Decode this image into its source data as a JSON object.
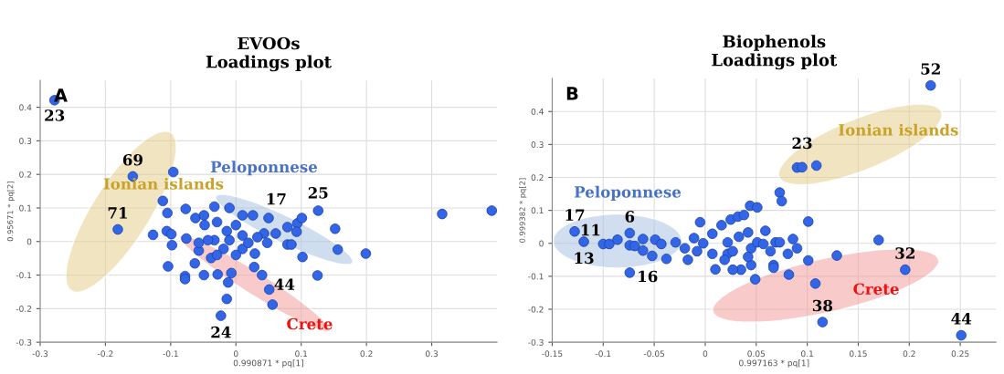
{
  "chart_data": [
    {
      "type": "scatter",
      "title": "EVOOs\nLoadings plot",
      "xlabel": "0.990871 * pq[1]",
      "ylabel": "0.95671 * pq[2]",
      "xlim": [
        -0.3,
        0.4
      ],
      "ylim": [
        -0.3,
        0.48
      ],
      "xticks": [
        -0.3,
        -0.2,
        -0.1,
        0,
        0.1,
        0.2,
        0.3
      ],
      "yticks": [
        -0.3,
        -0.2,
        -0.1,
        0,
        0.1,
        0.2,
        0.3,
        0.4
      ],
      "grid": true,
      "marker": "circle",
      "series": [
        {
          "color": "#3366e6",
          "x": [
            -0.278,
            -0.158,
            -0.181,
            -0.096,
            -0.112,
            -0.105,
            -0.127,
            -0.106,
            -0.099,
            -0.098,
            -0.104,
            -0.078,
            -0.078,
            -0.077,
            -0.062,
            -0.049,
            -0.033,
            -0.01,
            0.01,
            0.026,
            0.05,
            0.079,
            0.094,
            0.101,
            0.126,
            0.152,
            0.156,
            0.199,
            0.102,
            0.125,
            0.079,
            0.085,
            0.061,
            0.043,
            0.093,
            0.028,
            0.04,
            0.051,
            0.056,
            -0.014,
            -0.012,
            -0.023,
            -0.049,
            -0.063,
            -0.028,
            -0.007,
            -0.038,
            -0.057,
            -0.076,
            0.01,
            0.019,
            -0.019,
            -0.033,
            -0.014,
            0.0,
            0.01,
            0.033,
            0.048,
            -0.048,
            -0.029,
            -0.043,
            -0.01,
            -0.029,
            0.0,
            0.029,
            -0.057,
            0.316,
            0.392
          ],
          "values": [
            0.421,
            0.194,
            0.036,
            0.207,
            0.121,
            0.085,
            0.02,
            0.031,
            0.022,
            -0.011,
            -0.074,
            -0.103,
            -0.112,
            0.097,
            0.07,
            0.078,
            0.104,
            0.1,
            0.078,
            0.078,
            0.07,
            0.043,
            0.054,
            0.07,
            0.092,
            0.038,
            -0.024,
            -0.036,
            -0.046,
            -0.101,
            -0.009,
            -0.009,
            0.024,
            0.024,
            0.029,
            -0.076,
            -0.1,
            -0.143,
            -0.188,
            -0.171,
            -0.122,
            -0.221,
            -0.1,
            -0.065,
            -0.098,
            -0.094,
            -0.049,
            -0.027,
            0.009,
            -0.022,
            -0.004,
            -0.022,
            0.004,
            0.031,
            0.049,
            0.018,
            0.013,
            -0.004,
            0.049,
            0.058,
            0.004,
            0.004,
            -0.04,
            -0.04,
            -0.036,
            -0.004,
            0.082,
            0.092
          ]
        }
      ],
      "annotations": [
        "A",
        "Ionian islands",
        "Peloponnese",
        "Crete",
        {
          "text": "23",
          "x": -0.278,
          "y": 0.421
        },
        {
          "text": "69",
          "x": -0.158,
          "y": 0.194
        },
        {
          "text": "71",
          "x": -0.181,
          "y": 0.036
        },
        {
          "text": "17",
          "x": 0.05,
          "y": 0.07
        },
        {
          "text": "25",
          "x": 0.126,
          "y": 0.092
        },
        {
          "text": "44",
          "x": 0.051,
          "y": -0.143
        },
        {
          "text": "24",
          "x": -0.023,
          "y": -0.221
        }
      ]
    },
    {
      "type": "scatter",
      "title": "Biophenols\nLoadings plot",
      "xlabel": "0.997163 * pq[1]",
      "ylabel": "0.999382 * pq[2]",
      "xlim": [
        -0.15,
        0.285
      ],
      "ylim": [
        -0.3,
        0.5
      ],
      "xticks": [
        -0.15,
        -0.1,
        -0.05,
        0,
        0.05,
        0.1,
        0.15,
        0.2,
        0.25
      ],
      "yticks": [
        -0.3,
        -0.2,
        -0.1,
        0,
        0.1,
        0.2,
        0.3,
        0.4
      ],
      "grid": true,
      "marker": "circle",
      "series": [
        {
          "color": "#3366e6",
          "x": [
            0.221,
            0.09,
            0.095,
            0.109,
            0.073,
            0.075,
            0.044,
            0.051,
            0.101,
            0.059,
            0.17,
            0.196,
            0.129,
            0.101,
            0.081,
            0.09,
            0.086,
            0.069,
            0.073,
            0.064,
            0.067,
            0.067,
            0.082,
            0.049,
            0.108,
            0.115,
            0.251,
            0.045,
            0.035,
            0.027,
            0.01,
            -0.005,
            -0.128,
            -0.119,
            -0.1,
            -0.094,
            -0.086,
            -0.074,
            -0.074,
            -0.069,
            -0.074,
            -0.061,
            -0.061,
            -0.052,
            -0.049,
            -0.038,
            -0.043,
            -0.029,
            -0.017,
            -0.008,
            -0.002,
            0.007,
            0.016,
            0.025,
            0.032,
            0.038,
            0.022,
            0.033,
            0.042,
            0.045,
            0.042,
            0.051,
            0.057,
            0.022,
            0.007,
            -0.02,
            -0.011,
            0.019,
            0.027
          ],
          "values": [
            0.479,
            0.23,
            0.231,
            0.236,
            0.154,
            0.128,
            0.114,
            0.109,
            0.066,
            0.038,
            0.01,
            -0.08,
            -0.037,
            -0.052,
            -0.032,
            -0.015,
            0.013,
            0.003,
            0.003,
            -0.024,
            -0.066,
            -0.074,
            -0.095,
            -0.109,
            -0.122,
            -0.239,
            -0.279,
            -0.066,
            -0.08,
            -0.08,
            -0.079,
            0.064,
            0.036,
            0.005,
            -0.002,
            -0.002,
            0.011,
            0.031,
            -0.006,
            -0.008,
            -0.089,
            0.013,
            -0.022,
            -0.038,
            0.011,
            -0.047,
            -0.002,
            0.003,
            -0.05,
            -0.024,
            0.0,
            0.029,
            0.055,
            0.072,
            0.081,
            0.086,
            0.003,
            0.02,
            0.033,
            -0.015,
            -0.041,
            0.003,
            -0.002,
            -0.032,
            -0.032,
            -0.015,
            0.016,
            -0.05,
            -0.024
          ]
        }
      ],
      "annotations": [
        "B",
        "Ionian islands",
        "Peloponnese",
        "Crete",
        {
          "text": "52",
          "x": 0.221,
          "y": 0.479
        },
        {
          "text": "23",
          "x": 0.095,
          "y": 0.231
        },
        {
          "text": "17",
          "x": -0.128,
          "y": 0.036
        },
        {
          "text": "11",
          "x": -0.1,
          "y": -0.002
        },
        {
          "text": "13",
          "x": -0.119,
          "y": 0.005
        },
        {
          "text": "6",
          "x": -0.074,
          "y": 0.031
        },
        {
          "text": "16",
          "x": -0.074,
          "y": -0.089
        },
        {
          "text": "32",
          "x": 0.196,
          "y": -0.08
        },
        {
          "text": "38",
          "x": 0.115,
          "y": -0.239
        },
        {
          "text": "44",
          "x": 0.251,
          "y": -0.279
        }
      ]
    }
  ]
}
